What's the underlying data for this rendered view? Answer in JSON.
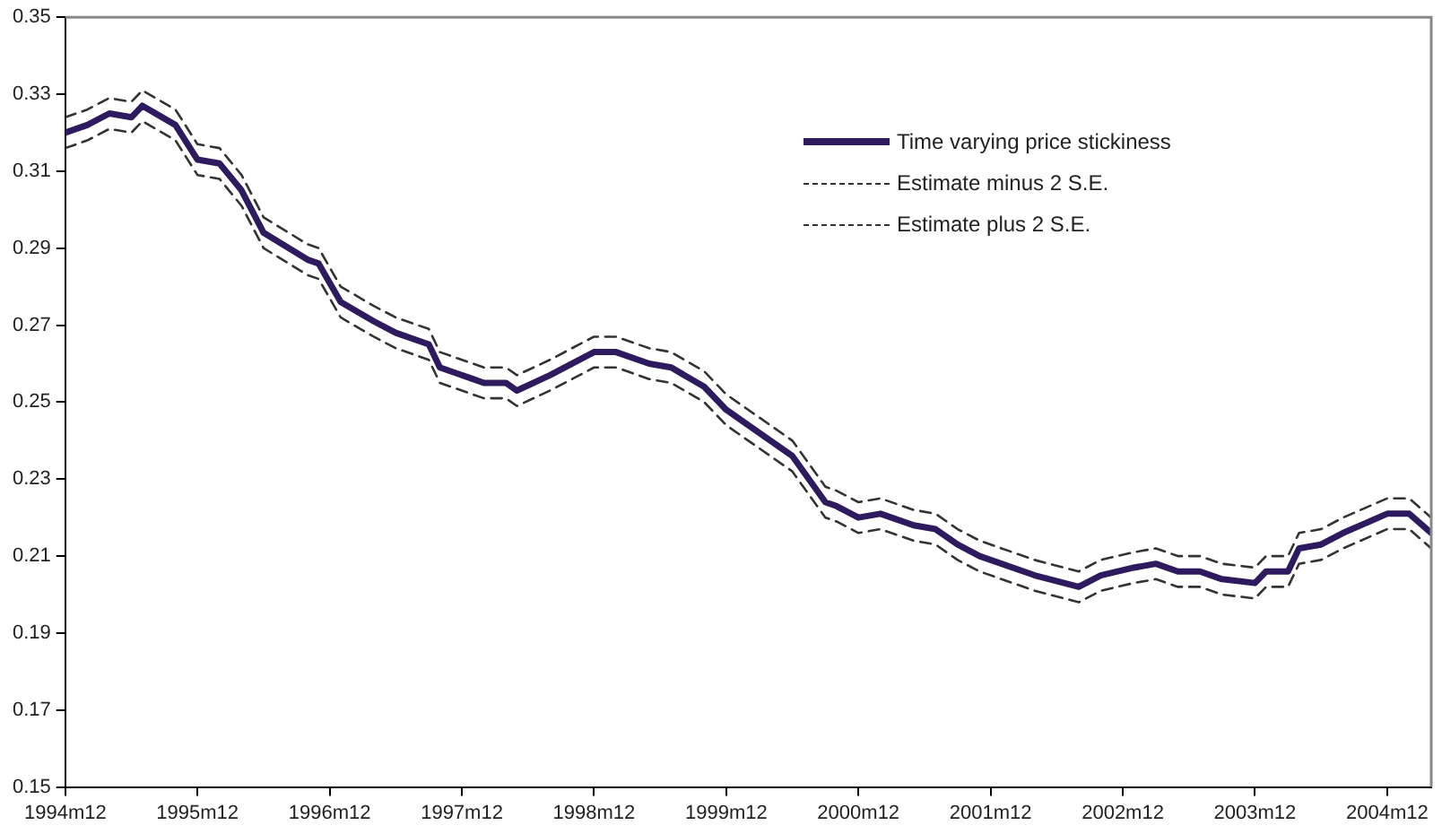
{
  "chart_data": {
    "type": "line",
    "x": [
      "1994-12",
      "1995-02",
      "1995-04",
      "1995-06",
      "1995-07",
      "1995-10",
      "1995-12",
      "1996-02",
      "1996-04",
      "1996-06",
      "1996-10",
      "1996-11",
      "1997-01",
      "1997-04",
      "1997-06",
      "1997-09",
      "1997-10",
      "1998-01",
      "1998-02",
      "1998-04",
      "1998-05",
      "1998-08",
      "1998-12",
      "1999-02",
      "1999-05",
      "1999-07",
      "1999-10",
      "1999-12",
      "2000-02",
      "2000-06",
      "2000-09",
      "2000-10",
      "2000-12",
      "2001-02",
      "2001-05",
      "2001-07",
      "2001-09",
      "2001-11",
      "2002-04",
      "2002-08",
      "2002-10",
      "2003-01",
      "2003-03",
      "2003-05",
      "2003-07",
      "2003-09",
      "2003-12",
      "2004-01",
      "2004-03",
      "2004-04",
      "2004-06",
      "2004-08",
      "2004-12",
      "2005-02",
      "2005-04"
    ],
    "series": [
      {
        "name": "Time varying price stickiness",
        "color": "#2e1a5e",
        "line_style": "solid",
        "values": [
          0.32,
          0.322,
          0.325,
          0.324,
          0.327,
          0.322,
          0.313,
          0.312,
          0.305,
          0.294,
          0.287,
          0.286,
          0.276,
          0.271,
          0.268,
          0.265,
          0.259,
          0.256,
          0.255,
          0.255,
          0.253,
          0.257,
          0.263,
          0.263,
          0.26,
          0.259,
          0.254,
          0.248,
          0.244,
          0.236,
          0.224,
          0.223,
          0.22,
          0.221,
          0.218,
          0.217,
          0.213,
          0.21,
          0.205,
          0.202,
          0.205,
          0.207,
          0.208,
          0.206,
          0.206,
          0.204,
          0.203,
          0.206,
          0.206,
          0.212,
          0.213,
          0.216,
          0.221,
          0.221,
          0.216
        ]
      },
      {
        "name": "Estimate minus 2 S.E.",
        "color": "#333333",
        "line_style": "dashed",
        "values": [
          0.316,
          0.318,
          0.321,
          0.32,
          0.323,
          0.318,
          0.309,
          0.308,
          0.301,
          0.29,
          0.283,
          0.282,
          0.272,
          0.267,
          0.264,
          0.261,
          0.255,
          0.252,
          0.251,
          0.251,
          0.249,
          0.253,
          0.259,
          0.259,
          0.256,
          0.255,
          0.25,
          0.244,
          0.24,
          0.232,
          0.22,
          0.219,
          0.216,
          0.217,
          0.214,
          0.213,
          0.209,
          0.206,
          0.201,
          0.198,
          0.201,
          0.203,
          0.204,
          0.202,
          0.202,
          0.2,
          0.199,
          0.202,
          0.202,
          0.208,
          0.209,
          0.212,
          0.217,
          0.217,
          0.212
        ]
      },
      {
        "name": "Estimate plus 2 S.E.",
        "color": "#333333",
        "line_style": "dashed",
        "values": [
          0.324,
          0.326,
          0.329,
          0.328,
          0.331,
          0.326,
          0.317,
          0.316,
          0.309,
          0.298,
          0.291,
          0.29,
          0.28,
          0.275,
          0.272,
          0.269,
          0.263,
          0.26,
          0.259,
          0.259,
          0.257,
          0.261,
          0.267,
          0.267,
          0.264,
          0.263,
          0.258,
          0.252,
          0.248,
          0.24,
          0.228,
          0.227,
          0.224,
          0.225,
          0.222,
          0.221,
          0.217,
          0.214,
          0.209,
          0.206,
          0.209,
          0.211,
          0.212,
          0.21,
          0.21,
          0.208,
          0.207,
          0.21,
          0.21,
          0.216,
          0.217,
          0.22,
          0.225,
          0.225,
          0.22
        ]
      }
    ],
    "xlim": [
      "1994-12",
      "2005-04"
    ],
    "xticks": [
      {
        "value": "1994-12",
        "label": "1994m12"
      },
      {
        "value": "1995-12",
        "label": "1995m12"
      },
      {
        "value": "1996-12",
        "label": "1996m12"
      },
      {
        "value": "1997-12",
        "label": "1997m12"
      },
      {
        "value": "1998-12",
        "label": "1998m12"
      },
      {
        "value": "1999-12",
        "label": "1999m12"
      },
      {
        "value": "2000-12",
        "label": "2000m12"
      },
      {
        "value": "2001-12",
        "label": "2001m12"
      },
      {
        "value": "2002-12",
        "label": "2002m12"
      },
      {
        "value": "2003-12",
        "label": "2003m12"
      },
      {
        "value": "2004-12",
        "label": "2004m12"
      }
    ],
    "ylim": [
      0.15,
      0.35
    ],
    "yticks": [
      0.15,
      0.17,
      0.19,
      0.21,
      0.23,
      0.25,
      0.27,
      0.29,
      0.31,
      0.33,
      0.35
    ],
    "grid": false,
    "legend": "top right",
    "marker": "none"
  }
}
